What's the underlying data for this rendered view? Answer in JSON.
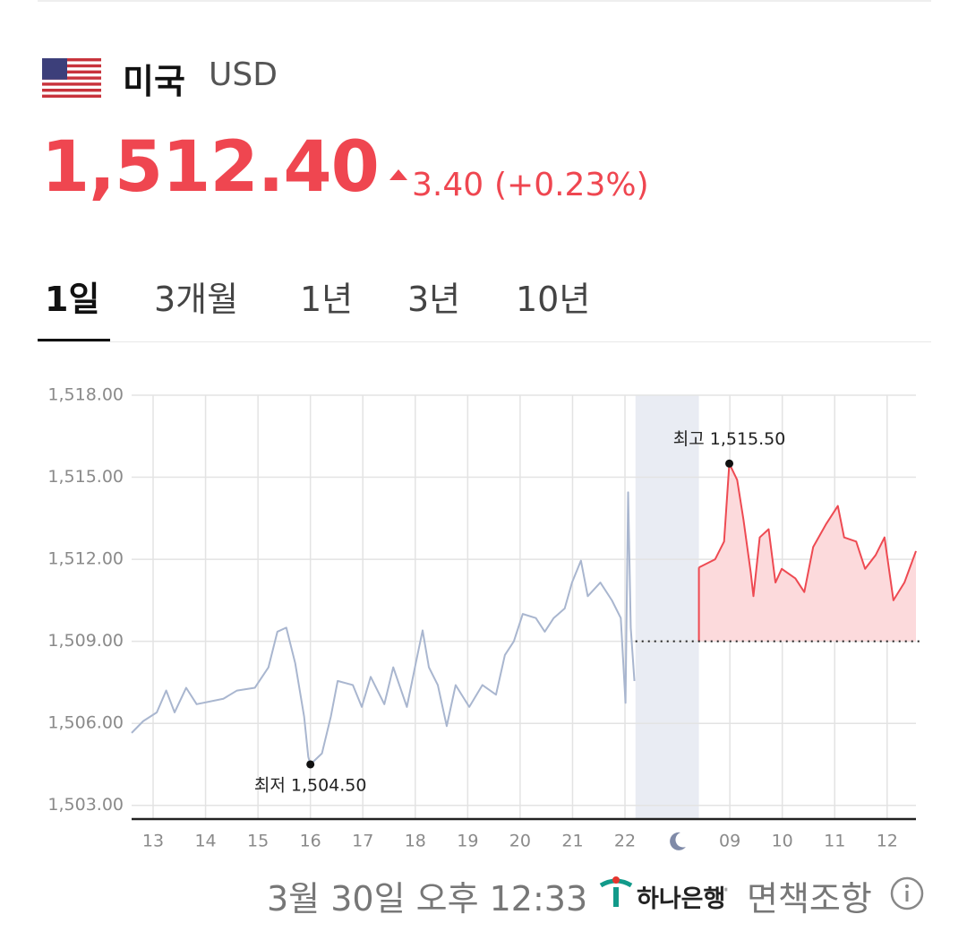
{
  "header": {
    "country": "미국",
    "currency": "USD",
    "price": "1,512.40",
    "change": "3.40",
    "change_pct": "(+0.23%)"
  },
  "tabs": [
    "1일",
    "3개월",
    "1년",
    "3년",
    "10년"
  ],
  "selected_tab": 0,
  "footer": {
    "timestamp": "3월 30일 오후 12:33",
    "provider": "하나은행",
    "disclaimer": "면책조항"
  },
  "chart_data": {
    "type": "line",
    "xlim": [
      12.59,
      27.55
    ],
    "ylim": [
      1502.5,
      1518
    ],
    "xticks": [
      13,
      14,
      15,
      16,
      17,
      18,
      19,
      20,
      21,
      22,
      {
        "value": 24,
        "label": "09"
      },
      {
        "value": 25,
        "label": "10"
      },
      {
        "value": 26,
        "label": "11"
      },
      {
        "value": 27,
        "label": "12"
      }
    ],
    "yticks": [
      {
        "value": 1503,
        "label": "1,503.00"
      },
      {
        "value": 1506,
        "label": "1,506.00"
      },
      {
        "value": 1509,
        "label": "1,509.00"
      },
      {
        "value": 1512,
        "label": "1,512.00"
      },
      {
        "value": 1515,
        "label": "1,515.00"
      },
      {
        "value": 1518,
        "label": "1,518.00"
      }
    ],
    "grid": true,
    "baseline": 1509,
    "shaded_range": [
      22.2,
      23.41
    ],
    "series": [
      {
        "color": "#a9b6cf",
        "area": false,
        "x": [
          12.59,
          12.81,
          13.07,
          13.25,
          13.41,
          13.63,
          13.83,
          14.34,
          14.6,
          14.94,
          15.2,
          15.37,
          15.54,
          15.71,
          15.88,
          15.96,
          16.0,
          16.22,
          16.39,
          16.52,
          16.81,
          16.98,
          17.15,
          17.41,
          17.58,
          17.84,
          18.01,
          18.14,
          18.26,
          18.43,
          18.6,
          18.77,
          19.03,
          19.28,
          19.54,
          19.71,
          19.88,
          20.05,
          20.3,
          20.47,
          20.64,
          20.85,
          20.99,
          21.16,
          21.29,
          21.53,
          21.75,
          21.92,
          22.01,
          22.06,
          22.11,
          22.18
        ],
        "values": [
          1505.65,
          1506.08,
          1506.4,
          1507.2,
          1506.4,
          1507.3,
          1506.7,
          1506.9,
          1507.2,
          1507.3,
          1508.05,
          1509.35,
          1509.5,
          1508.2,
          1506.25,
          1504.77,
          1504.5,
          1504.9,
          1506.25,
          1507.55,
          1507.4,
          1506.6,
          1507.7,
          1506.7,
          1508.05,
          1506.6,
          1508.2,
          1509.4,
          1508.05,
          1507.4,
          1505.9,
          1507.4,
          1506.6,
          1507.4,
          1507.05,
          1508.5,
          1509.0,
          1510.0,
          1509.85,
          1509.35,
          1509.85,
          1510.2,
          1511.15,
          1511.95,
          1510.65,
          1511.15,
          1510.5,
          1509.85,
          1506.75,
          1514.45,
          1509.5,
          1507.55
        ]
      },
      {
        "color": "#ee4a52",
        "area": true,
        "area_color": "#fcdadc",
        "x": [
          23.41,
          23.72,
          23.89,
          23.99,
          24.14,
          24.26,
          24.4,
          24.45,
          24.57,
          24.74,
          24.87,
          24.99,
          25.25,
          25.42,
          25.59,
          25.84,
          26.06,
          26.18,
          26.41,
          26.58,
          26.78,
          26.95,
          27.12,
          27.33,
          27.55
        ],
        "values": [
          1511.7,
          1512.0,
          1512.65,
          1515.5,
          1514.9,
          1513.45,
          1511.5,
          1510.65,
          1512.8,
          1513.1,
          1511.15,
          1511.65,
          1511.3,
          1510.8,
          1512.45,
          1513.3,
          1513.95,
          1512.8,
          1512.65,
          1511.65,
          1512.15,
          1512.8,
          1510.5,
          1511.15,
          1512.3
        ]
      }
    ],
    "annotations": [
      {
        "text": "최고 1,515.50",
        "x": 23.99,
        "value": 1515.5
      },
      {
        "text": "최저 1,504.50",
        "x": 16.0,
        "value": 1504.5
      }
    ]
  }
}
